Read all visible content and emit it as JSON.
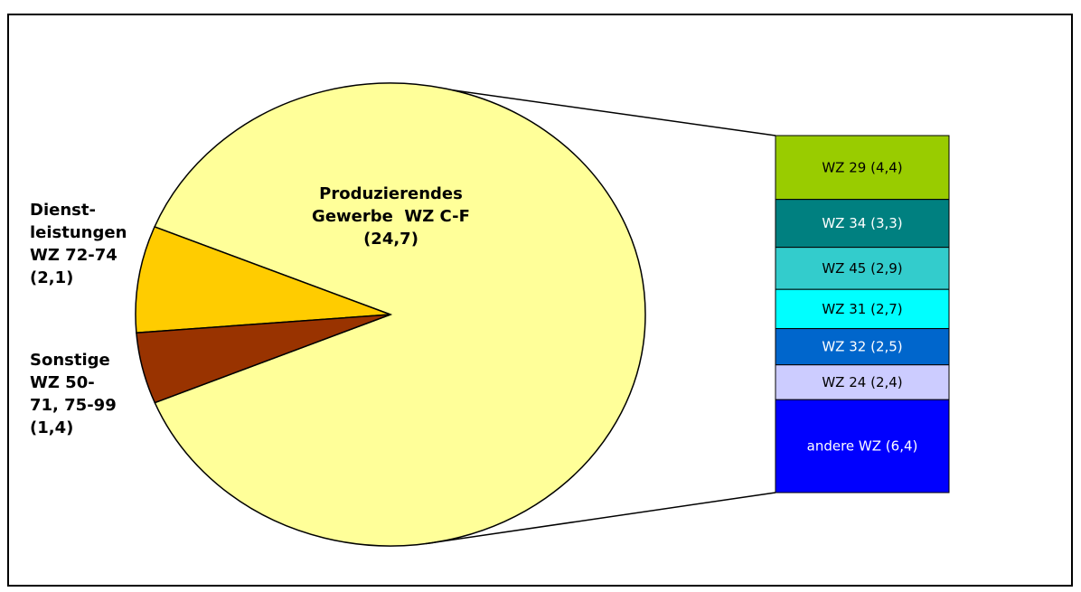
{
  "chart_data": {
    "type": "pie",
    "categories": [
      "Produzierendes Gewerbe  WZ C-F",
      "Dienst-leistungen WZ 72-74",
      "Sonstige WZ 50-71, 75-99"
    ],
    "values": [
      24.7,
      2.1,
      1.4
    ],
    "value_labels": [
      "(24,7)",
      "(2,1)",
      "(1,4)"
    ],
    "colors": [
      "#ffff99",
      "#ffcc00",
      "#993300"
    ],
    "breakdown": {
      "type": "bar",
      "categories": [
        "WZ 29",
        "WZ 34",
        "WZ 45",
        "WZ 31",
        "WZ 32",
        "WZ 24",
        "andere WZ "
      ],
      "values": [
        4.4,
        3.3,
        2.9,
        2.7,
        2.5,
        2.4,
        6.4
      ],
      "value_labels": [
        "(4,4)",
        "(3,3)",
        "(2,9)",
        "(2,7)",
        "(2,5)",
        "(2,4)",
        "(6,4)"
      ],
      "colors": [
        "#99cc00",
        "#008080",
        "#33cccc",
        "#00ffff",
        "#0066cc",
        "#ccccff",
        "#0000ff"
      ]
    }
  }
}
